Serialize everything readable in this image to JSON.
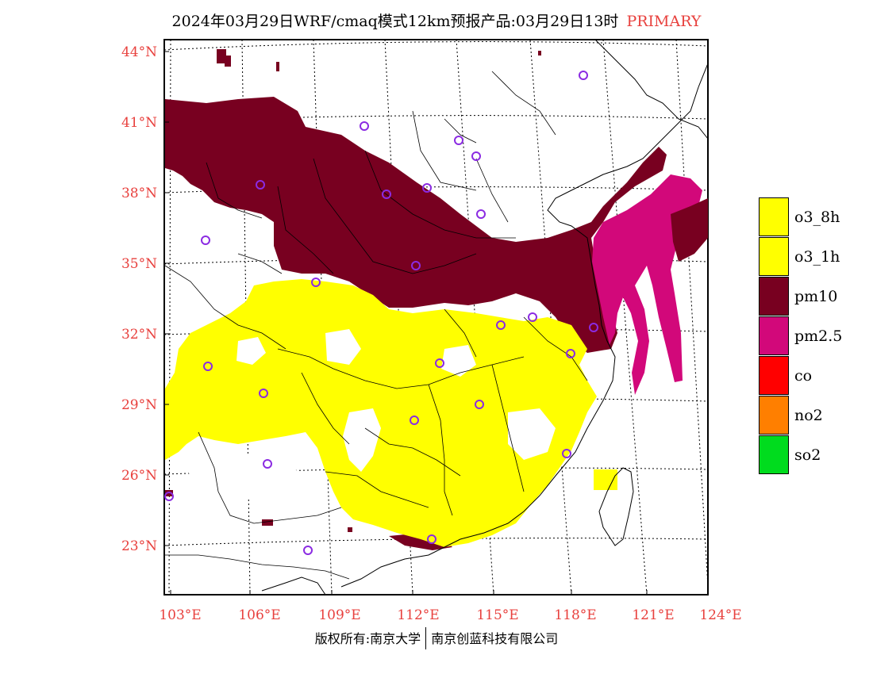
{
  "title": {
    "main": "2024年03月29日WRF/cmaq模式12km预报产品:03月29日13时",
    "tag": "PRIMARY"
  },
  "axes": {
    "lat_labels": [
      "44°N",
      "41°N",
      "38°N",
      "35°N",
      "32°N",
      "29°N",
      "26°N",
      "23°N"
    ],
    "lon_labels": [
      "103°E",
      "106°E",
      "109°E",
      "112°E",
      "115°E",
      "118°E",
      "121°E",
      "124°E"
    ]
  },
  "legend": [
    {
      "label": "o3_8h",
      "color": "#ffff00"
    },
    {
      "label": "o3_1h",
      "color": "#ffff00"
    },
    {
      "label": "pm10",
      "color": "#780020"
    },
    {
      "label": "pm2.5",
      "color": "#d2087a"
    },
    {
      "label": "co",
      "color": "#ff0000"
    },
    {
      "label": "no2",
      "color": "#ff7f00"
    },
    {
      "label": "so2",
      "color": "#00dc1e"
    }
  ],
  "footer": {
    "left": "版权所有:南京大学",
    "right": "南京创蓝科技有限公司"
  },
  "colors": {
    "axis_label": "#e8413e",
    "pm10": "#780020",
    "pm25": "#d2087a",
    "o3": "#ffff00",
    "station": "#8b2be2"
  }
}
